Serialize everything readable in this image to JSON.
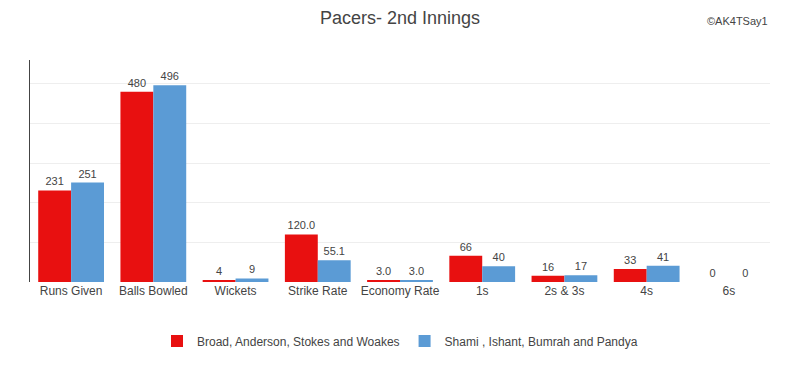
{
  "chart_data": {
    "type": "bar",
    "title": "Pacers- 2nd Innings",
    "annotations": [
      "©AK4TSay1"
    ],
    "categories": [
      "Runs Given",
      "Balls Bowled",
      "Wickets",
      "Strike Rate",
      "Economy Rate",
      "1s",
      "2s & 3s",
      "4s",
      "6s"
    ],
    "series": [
      {
        "name": "Broad, Anderson, Stokes and Woakes",
        "color": "#e81010",
        "values": [
          231,
          480,
          4,
          120.0,
          3.0,
          66,
          16,
          33,
          0
        ],
        "value_labels": [
          "231",
          "480",
          "4",
          "120.0",
          "3.0",
          "66",
          "16",
          "33",
          "0"
        ]
      },
      {
        "name": "Shami , Ishant, Bumrah and Pandya",
        "color": "#5b9bd5",
        "values": [
          251,
          496,
          9,
          55.1,
          3.0,
          40,
          17,
          41,
          0
        ],
        "value_labels": [
          "251",
          "496",
          "9",
          "55.1",
          "3.0",
          "40",
          "17",
          "41",
          "0"
        ]
      }
    ],
    "ylim": [
      0,
      560
    ],
    "yticks": [
      0,
      100,
      200,
      300,
      400,
      500
    ],
    "grid": true,
    "legend": "bottom",
    "data_labels": true,
    "tick_labels": "x"
  }
}
